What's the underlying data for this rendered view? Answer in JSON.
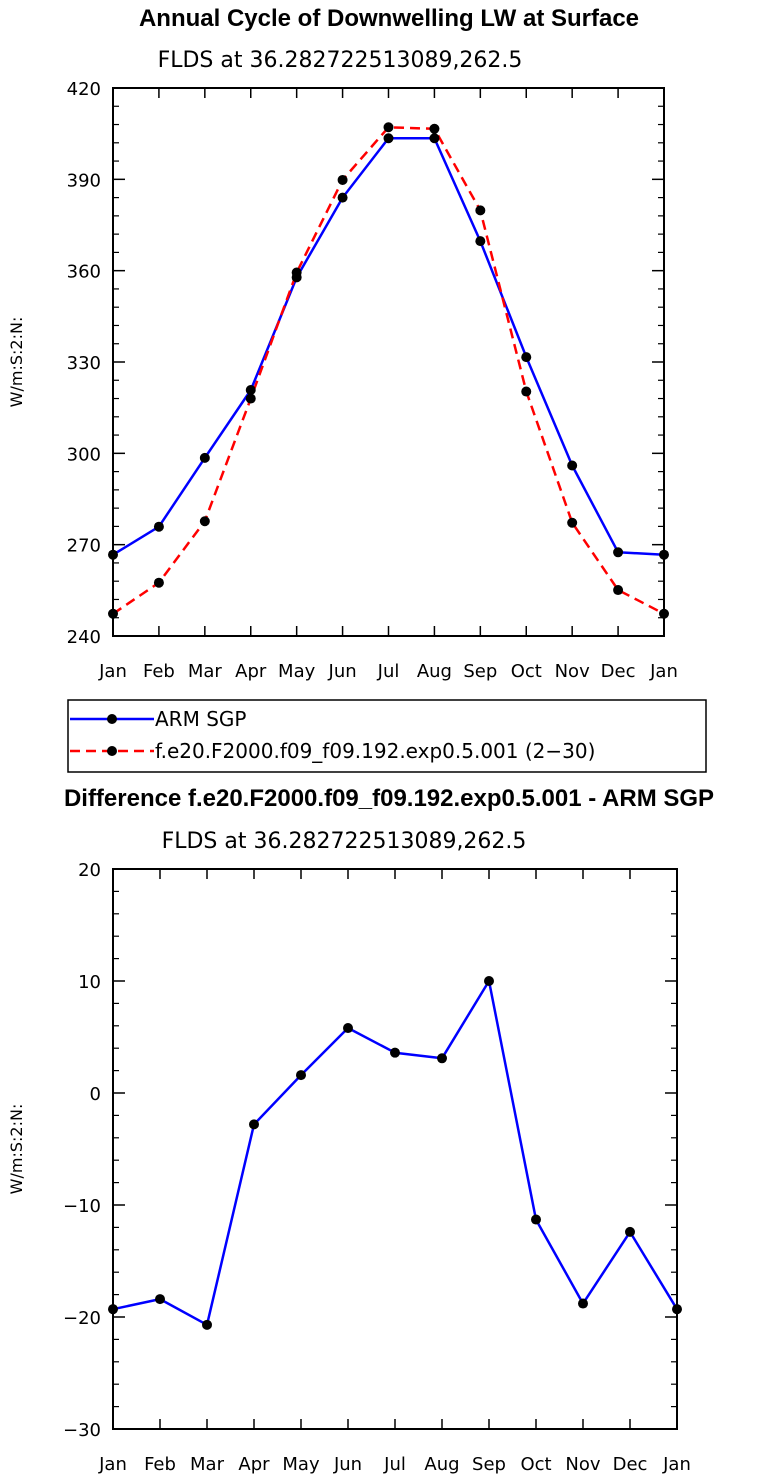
{
  "chart_data": [
    {
      "type": "line",
      "title": "Annual Cycle of Downwelling LW at Surface",
      "subtitle": "FLDS at 36.282722513089,262.5",
      "xlabel": "",
      "ylabel": "W/m:S:2:N:",
      "categories": [
        "Jan",
        "Feb",
        "Mar",
        "Apr",
        "May",
        "Jun",
        "Jul",
        "Aug",
        "Sep",
        "Oct",
        "Nov",
        "Dec",
        "Jan"
      ],
      "yticks": [
        240,
        270,
        300,
        330,
        360,
        390,
        420
      ],
      "ylim": [
        240,
        420
      ],
      "grid": false,
      "legend_position": "bottom-left",
      "series": [
        {
          "name": "ARM SGP",
          "color": "#0000ff",
          "dashed": false,
          "values": [
            266.7,
            275.9,
            298.5,
            320.8,
            357.8,
            384.0,
            403.5,
            403.5,
            369.7,
            331.6,
            296.0,
            267.5,
            266.7
          ]
        },
        {
          "name": "f.e20.F2000.f09_f09.192.exp0.5.001 (2−30)",
          "color": "#ff0000",
          "dashed": true,
          "values": [
            247.3,
            257.5,
            277.7,
            318.0,
            359.4,
            389.8,
            407.1,
            406.6,
            379.8,
            320.3,
            277.2,
            255.1,
            247.3
          ]
        }
      ]
    },
    {
      "type": "line",
      "title": "Difference f.e20.F2000.f09_f09.192.exp0.5.001 - ARM SGP",
      "subtitle": "FLDS at 36.282722513089,262.5",
      "xlabel": "",
      "ylabel": "W/m:S:2:N:",
      "categories": [
        "Jan",
        "Feb",
        "Mar",
        "Apr",
        "May",
        "Jun",
        "Jul",
        "Aug",
        "Sep",
        "Oct",
        "Nov",
        "Dec",
        "Jan"
      ],
      "yticks": [
        -30,
        -20,
        -10,
        0,
        10,
        20
      ],
      "ytick_labels": [
        "−30",
        "−20",
        "−10",
        "0",
        "10",
        "20"
      ],
      "ylim": [
        -30,
        20
      ],
      "grid": false,
      "series": [
        {
          "color": "#0000ff",
          "dashed": false,
          "values": [
            -19.3,
            -18.4,
            -20.7,
            -2.8,
            1.6,
            5.8,
            3.6,
            3.1,
            10.0,
            -11.3,
            -18.8,
            -12.4,
            -19.3
          ]
        }
      ]
    }
  ]
}
